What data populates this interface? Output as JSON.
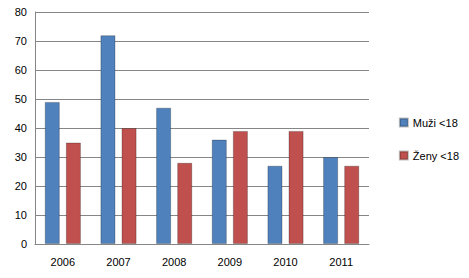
{
  "chart_data": {
    "type": "bar",
    "categories": [
      "2006",
      "2007",
      "2008",
      "2009",
      "2010",
      "2011"
    ],
    "series": [
      {
        "name": "Muži <18",
        "color": "#4f81bd",
        "values": [
          49,
          72,
          47,
          36,
          27,
          30
        ]
      },
      {
        "name": "Ženy <18",
        "color": "#c0504d",
        "values": [
          35,
          40,
          28,
          39,
          39,
          27
        ]
      }
    ],
    "ylim": [
      0,
      80
    ],
    "yticks": [
      0,
      10,
      20,
      30,
      40,
      50,
      60,
      70,
      80
    ],
    "grid": true,
    "legend": "right"
  }
}
